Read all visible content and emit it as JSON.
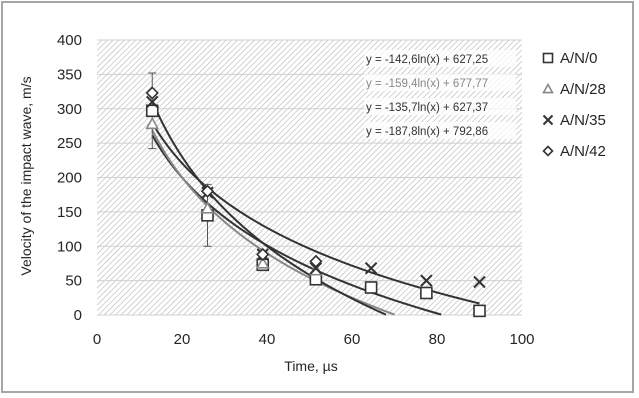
{
  "chart_data": {
    "type": "scatter",
    "xlabel": "Time, µs",
    "ylabel": "Velocity of the impact wave, m/s",
    "xlim": [
      0,
      100
    ],
    "ylim": [
      0,
      400
    ],
    "x_ticks": [
      "0",
      "20",
      "40",
      "60",
      "80",
      "100"
    ],
    "y_ticks": [
      "0",
      "50",
      "100",
      "150",
      "200",
      "250",
      "300",
      "350",
      "400"
    ],
    "grid": "horizontal",
    "legend_position": "right",
    "series": [
      {
        "name": "A/N/0",
        "marker": "square",
        "color": "#333333",
        "x": [
          13,
          26,
          39,
          51.5,
          64.5,
          77.5,
          90
        ],
        "y": [
          297,
          145,
          73,
          52,
          40,
          32,
          6
        ],
        "errors": [
          55,
          45,
          0,
          0,
          0,
          0,
          0
        ]
      },
      {
        "name": "A/N/28",
        "marker": "triangle",
        "color": "#888888",
        "x": [
          13,
          26,
          39,
          51.5
        ],
        "y": [
          278,
          155,
          75,
          65
        ]
      },
      {
        "name": "A/N/35",
        "marker": "x",
        "color": "#333333",
        "x": [
          13,
          26,
          39,
          51.5,
          64.5,
          77.5,
          90
        ],
        "y": [
          310,
          178,
          88,
          68,
          68,
          50,
          48
        ]
      },
      {
        "name": "A/N/42",
        "marker": "diamond",
        "color": "#333333",
        "x": [
          13,
          26,
          39,
          51.5
        ],
        "y": [
          323,
          180,
          88,
          78
        ]
      }
    ],
    "trendlines": [
      {
        "label": "y = -142,6ln(x) + 627,25",
        "a": -142.6,
        "b": 627.25,
        "color": "#333333"
      },
      {
        "label": "y = -159,4ln(x) + 677,77",
        "a": -159.4,
        "b": 677.77,
        "color": "#888888"
      },
      {
        "label": "y = -135,7ln(x) + 627,37",
        "a": -135.7,
        "b": 627.37,
        "color": "#333333"
      },
      {
        "label": "y = -187,8ln(x) + 792,86",
        "a": -187.8,
        "b": 792.86,
        "color": "#333333"
      }
    ]
  }
}
